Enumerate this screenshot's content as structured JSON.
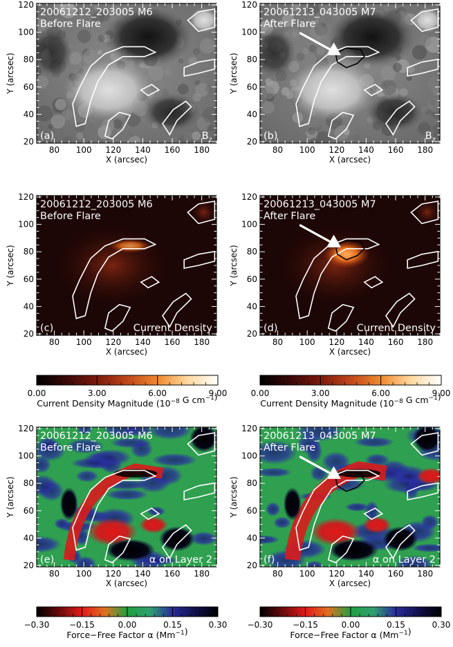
{
  "figure": {
    "x_axis_label": "X (arcsec)",
    "y_axis_label": "Y (arcsec)",
    "x_ticks": [
      "80",
      "100",
      "120",
      "140",
      "160",
      "180"
    ],
    "y_ticks": [
      "20",
      "40",
      "60",
      "80",
      "100",
      "120"
    ],
    "x_range": [
      68,
      190
    ],
    "y_range": [
      19,
      121
    ]
  },
  "panels": [
    {
      "id": "a",
      "letter": "(a)",
      "title": "20061212_203005 M6",
      "subtitle": "Before Flare",
      "corner_label": "B",
      "corner_sub": "z",
      "kind": "bz",
      "arrow": false
    },
    {
      "id": "b",
      "letter": "(b)",
      "title": "20061213_043005 M7",
      "subtitle": "After Flare",
      "corner_label": "B",
      "corner_sub": "z",
      "kind": "bz",
      "arrow": true
    },
    {
      "id": "c",
      "letter": "(c)",
      "title": "20061212_203005 M6",
      "subtitle": "Before Flare",
      "corner_label": "Current Density",
      "corner_sub": "",
      "kind": "current",
      "arrow": false
    },
    {
      "id": "d",
      "letter": "(d)",
      "title": "20061213_043005 M7",
      "subtitle": "After Flare",
      "corner_label": "Current Density",
      "corner_sub": "",
      "kind": "current",
      "arrow": true
    },
    {
      "id": "e",
      "letter": "(e)",
      "title": "20061212_203005 M6",
      "subtitle": "Before Flare",
      "corner_label": "α on Layer 2",
      "corner_sub": "",
      "kind": "alpha",
      "arrow": false
    },
    {
      "id": "f",
      "letter": "(f)",
      "title": "20061213_043005 M7",
      "subtitle": "After Flare",
      "corner_label": "α on Layer 2",
      "corner_sub": "",
      "kind": "alpha",
      "arrow": true
    }
  ],
  "colorbars": {
    "current": {
      "ticks": [
        "0.00",
        "3.00",
        "6.00",
        "9.00"
      ],
      "label_main": "Current Density Magnitude (10",
      "label_exp1": "−8",
      "label_mid": " G cm",
      "label_exp2": "−1",
      "label_end": ")",
      "colors": [
        "#000000",
        "#3a0808",
        "#7a1a0c",
        "#c0461a",
        "#ee8a2e",
        "#ffd9a0",
        "#ffffff"
      ]
    },
    "alpha": {
      "ticks": [
        "−0.30",
        "−0.15",
        "0.00",
        "0.15",
        "0.30"
      ],
      "label_main": "Force−Free Factor α (Mm",
      "label_exp": "−1",
      "label_end": ")",
      "colors": [
        "#000000",
        "#6b0a0a",
        "#e01a1a",
        "#e07020",
        "#20a040",
        "#30a070",
        "#2a2a9a",
        "#10104a",
        "#000000"
      ]
    }
  }
}
